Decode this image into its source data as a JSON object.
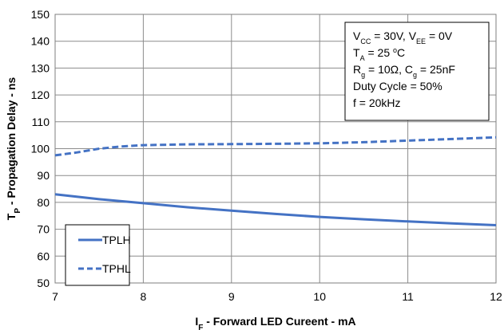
{
  "chart_data": {
    "type": "line",
    "xlabel": {
      "main": "I",
      "sub": "F",
      "rest": " - Forward LED Cureent - mA"
    },
    "ylabel": {
      "main": "T",
      "sub": "P",
      "rest": " - Propagation Delay - ns"
    },
    "xlim": [
      7,
      12
    ],
    "ylim": [
      50,
      150
    ],
    "xticks": [
      7,
      8,
      9,
      10,
      11,
      12
    ],
    "yticks": [
      50,
      60,
      70,
      80,
      90,
      100,
      110,
      120,
      130,
      140,
      150
    ],
    "grid": true,
    "legend_position": "bottom-left",
    "series": [
      {
        "name": "TPLH",
        "style": "solid",
        "color": "#4472C4",
        "x": [
          7,
          7.5,
          8,
          8.5,
          9,
          9.5,
          10,
          10.5,
          11,
          11.5,
          12
        ],
        "y": [
          83,
          81.2,
          79.7,
          78.2,
          76.9,
          75.7,
          74.6,
          73.7,
          72.9,
          72.2,
          71.5
        ]
      },
      {
        "name": "TPHL",
        "style": "dashed",
        "color": "#4472C4",
        "x": [
          7,
          7.25,
          7.5,
          7.75,
          8,
          8.5,
          9,
          9.5,
          10,
          10.5,
          11,
          11.5,
          12
        ],
        "y": [
          97.5,
          98.6,
          100.0,
          100.8,
          101.3,
          101.6,
          101.7,
          101.8,
          102.0,
          102.4,
          103.0,
          103.6,
          104.2
        ]
      }
    ],
    "annotation_lines": [
      {
        "text": "V",
        "sub1": "CC",
        "mid": " = 30V, V",
        "sub2": "EE",
        "end": " = 0V"
      },
      {
        "text": "T",
        "sub1": "A",
        "mid": " = 25 ",
        "sup": "o",
        "end": "C"
      },
      {
        "text": "R",
        "sub1": "g",
        "mid": " = 10Ω, C",
        "sub2": "g",
        "end": " = 25nF"
      },
      {
        "text": "Duty Cycle = 50%"
      },
      {
        "text": "f = 20kHz"
      }
    ]
  }
}
